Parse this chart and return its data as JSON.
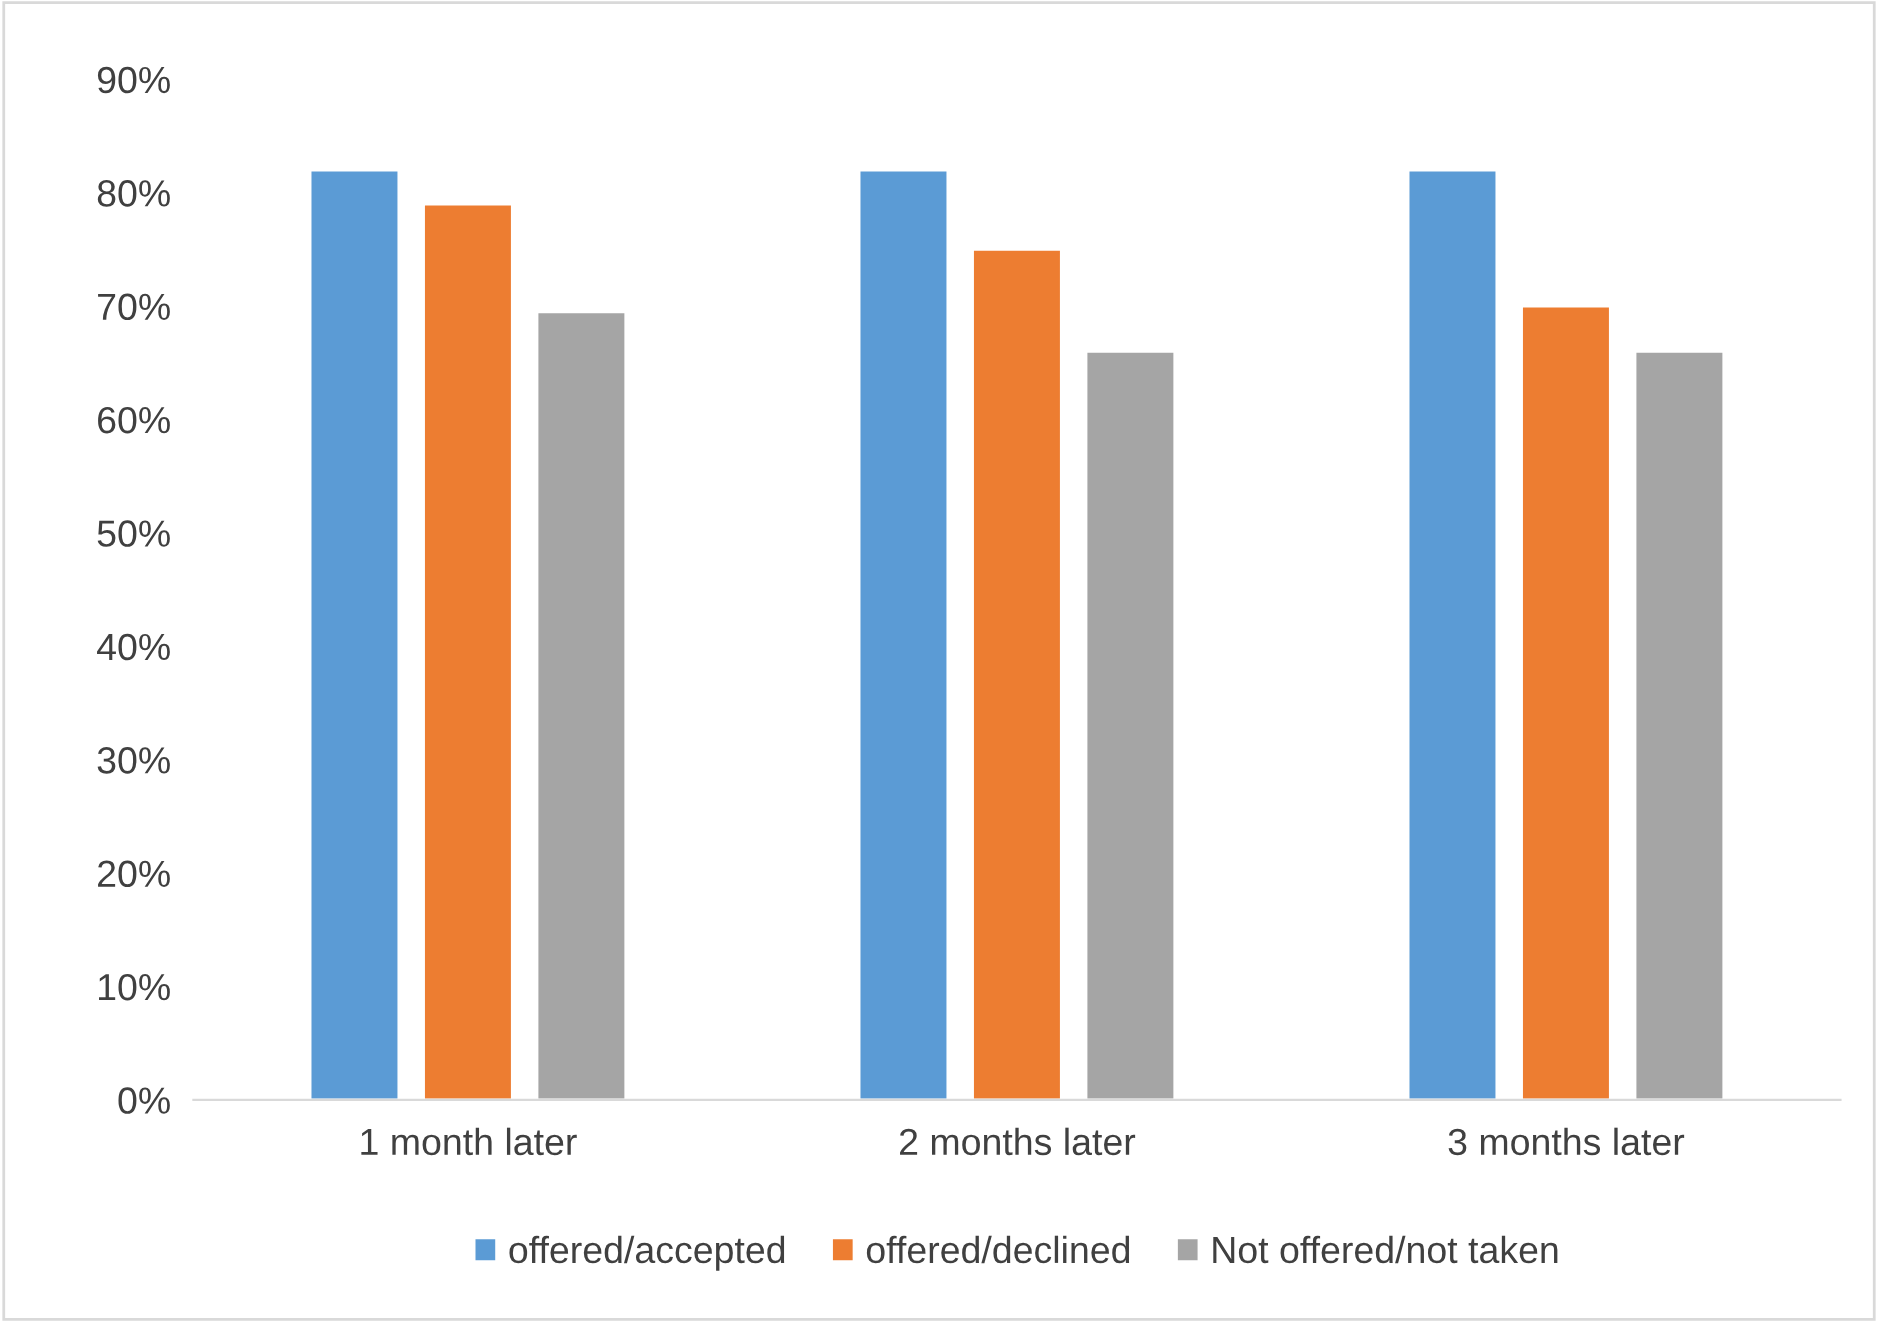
{
  "chart_data": {
    "type": "bar",
    "categories": [
      "1 month later",
      "2 months later",
      "3 months later"
    ],
    "series": [
      {
        "name": "offered/accepted",
        "color": "#5b9bd5",
        "values": [
          82,
          82,
          82
        ]
      },
      {
        "name": "offered/declined",
        "color": "#ed7d31",
        "values": [
          79,
          75,
          70
        ]
      },
      {
        "name": "Not offered/not taken",
        "color": "#a5a5a5",
        "values": [
          69.5,
          66,
          66
        ]
      }
    ],
    "ylim": [
      0,
      90
    ],
    "yticks": [
      {
        "value": 0,
        "label": "0%"
      },
      {
        "value": 10,
        "label": "10%"
      },
      {
        "value": 20,
        "label": "20%"
      },
      {
        "value": 30,
        "label": "30%"
      },
      {
        "value": 40,
        "label": "40%"
      },
      {
        "value": 50,
        "label": "50%"
      },
      {
        "value": 60,
        "label": "60%"
      },
      {
        "value": 70,
        "label": "70%"
      },
      {
        "value": 80,
        "label": "80%"
      },
      {
        "value": 90,
        "label": "90%"
      }
    ],
    "grid": false,
    "legend": "bottom"
  }
}
